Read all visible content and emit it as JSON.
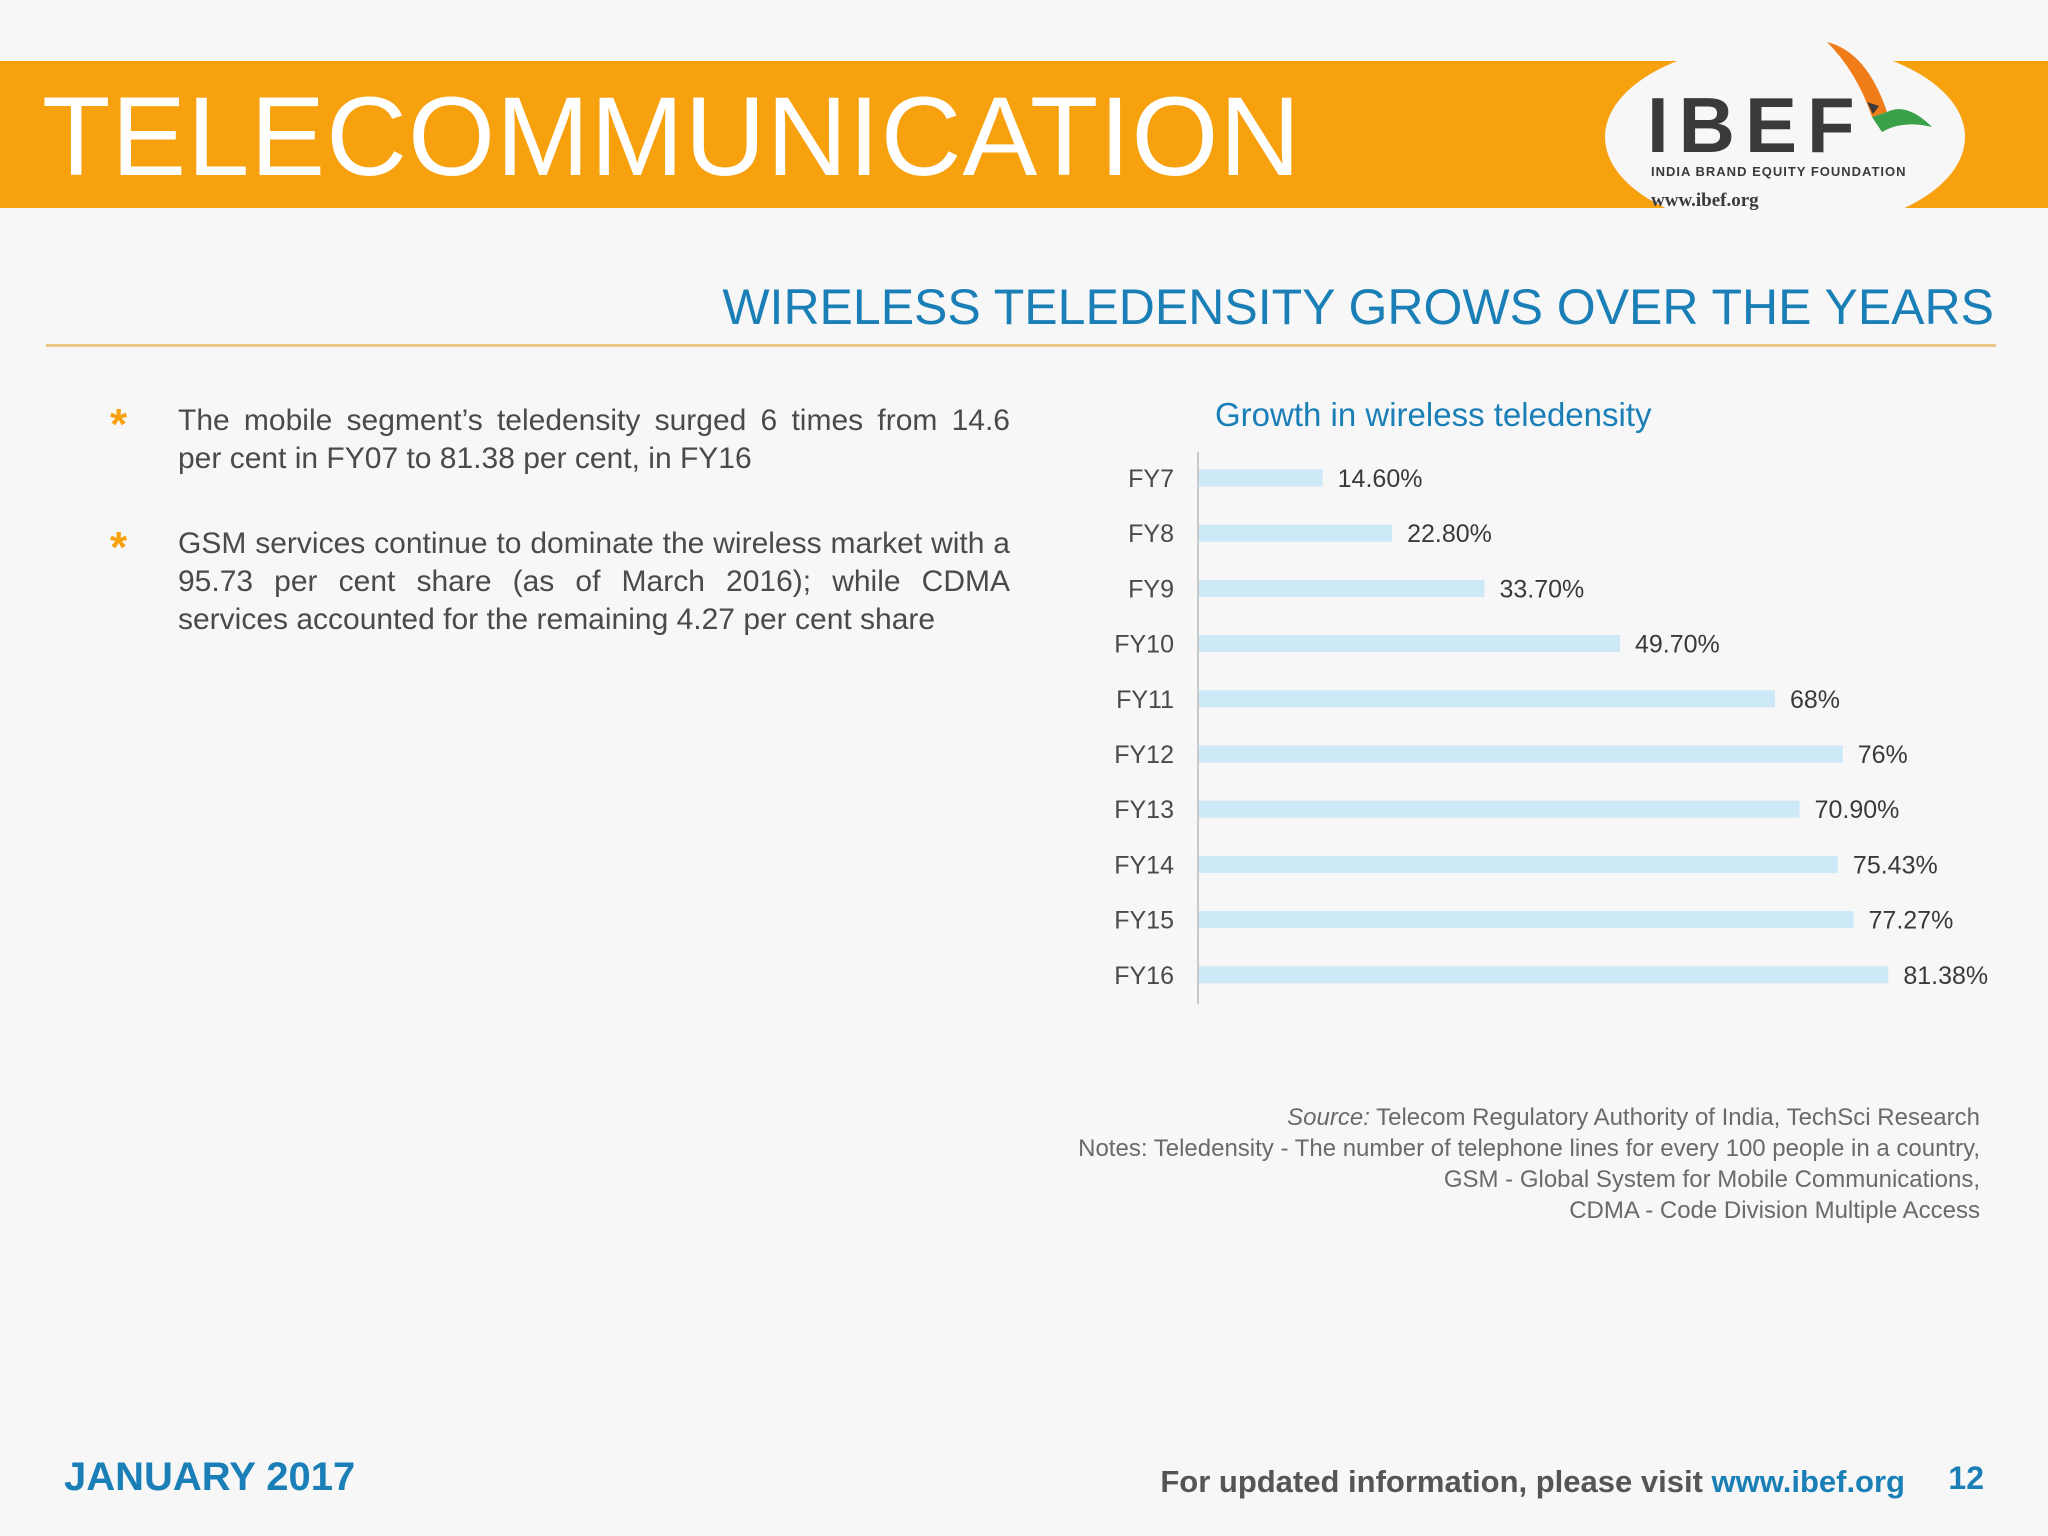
{
  "header": {
    "title": "TELECOMMUNICATION",
    "logo": {
      "name": "IBEF",
      "tagline": "INDIA BRAND EQUITY FOUNDATION",
      "url": "www.ibef.org",
      "colors": {
        "saffron": "#f07d1a",
        "green": "#3aa04a"
      }
    }
  },
  "section_title": "WIRELESS TELEDENSITY GROWS OVER THE YEARS",
  "bullets": [
    {
      "icon": "asterisk-icon",
      "text": "The mobile segment’s teledensity surged 6 times from 14.6 per cent in FY07 to 81.38 per cent, in FY16"
    },
    {
      "icon": "asterisk-icon",
      "text": "GSM services continue to dominate the wireless market with a 95.73 per cent share (as of March 2016); while CDMA services accounted for the remaining 4.27 per cent share"
    }
  ],
  "chart_data": {
    "type": "bar",
    "orientation": "horizontal",
    "title": "Growth in wireless teledensity",
    "categories": [
      "FY7",
      "FY8",
      "FY9",
      "FY10",
      "FY11",
      "FY12",
      "FY13",
      "FY14",
      "FY15",
      "FY16"
    ],
    "values": [
      14.6,
      22.8,
      33.7,
      49.7,
      68,
      76,
      70.9,
      75.43,
      77.27,
      81.38
    ],
    "data_labels": [
      "14.60%",
      "22.80%",
      "33.70%",
      "49.70%",
      "68%",
      "76%",
      "70.90%",
      "75.43%",
      "77.27%",
      "81.38%"
    ],
    "xlim": [
      0,
      85
    ],
    "grid": false,
    "legend": "none",
    "bar_color": "#cde8f7"
  },
  "source": {
    "label": "Source:",
    "text": "Telecom Regulatory Authority of India, TechSci Research",
    "notes": [
      "Notes: Teledensity - The number of telephone lines for every 100 people in a country,",
      "GSM - Global System for Mobile Communications,",
      "CDMA - Code Division Multiple Access"
    ]
  },
  "footer": {
    "date": "JANUARY 2017",
    "info": "For updated information, please visit",
    "url": "www.ibef.org",
    "page": "12"
  },
  "colors": {
    "accent": "#f8a10f",
    "blue": "#1a7fb6",
    "text": "#4a4a4a"
  }
}
